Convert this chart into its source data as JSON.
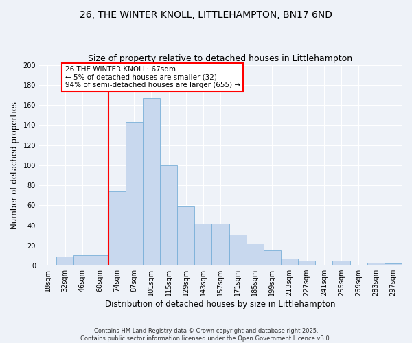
{
  "title": "26, THE WINTER KNOLL, LITTLEHAMPTON, BN17 6ND",
  "subtitle": "Size of property relative to detached houses in Littlehampton",
  "xlabel": "Distribution of detached houses by size in Littlehampton",
  "ylabel": "Number of detached properties",
  "bar_labels": [
    "18sqm",
    "32sqm",
    "46sqm",
    "60sqm",
    "74sqm",
    "87sqm",
    "101sqm",
    "115sqm",
    "129sqm",
    "143sqm",
    "157sqm",
    "171sqm",
    "185sqm",
    "199sqm",
    "213sqm",
    "227sqm",
    "241sqm",
    "255sqm",
    "269sqm",
    "283sqm",
    "297sqm"
  ],
  "bar_values": [
    1,
    9,
    10,
    10,
    74,
    143,
    167,
    100,
    59,
    42,
    42,
    31,
    22,
    15,
    7,
    5,
    0,
    5,
    0,
    3,
    2
  ],
  "bar_color": "#c8d8ee",
  "bar_edge_color": "#7ab0d8",
  "vline_position": 3.5,
  "vline_color": "red",
  "annotation_text": "26 THE WINTER KNOLL: 67sqm\n← 5% of detached houses are smaller (32)\n94% of semi-detached houses are larger (655) →",
  "annotation_box_color": "white",
  "annotation_box_edge_color": "red",
  "ylim": [
    0,
    200
  ],
  "yticks": [
    0,
    20,
    40,
    60,
    80,
    100,
    120,
    140,
    160,
    180,
    200
  ],
  "footer1": "Contains HM Land Registry data © Crown copyright and database right 2025.",
  "footer2": "Contains public sector information licensed under the Open Government Licence v3.0.",
  "bg_color": "#eef2f8",
  "grid_color": "#ffffff",
  "title_fontsize": 10,
  "label_fontsize": 8.5,
  "tick_fontsize": 7,
  "annot_fontsize": 7.5,
  "footer_fontsize": 6
}
